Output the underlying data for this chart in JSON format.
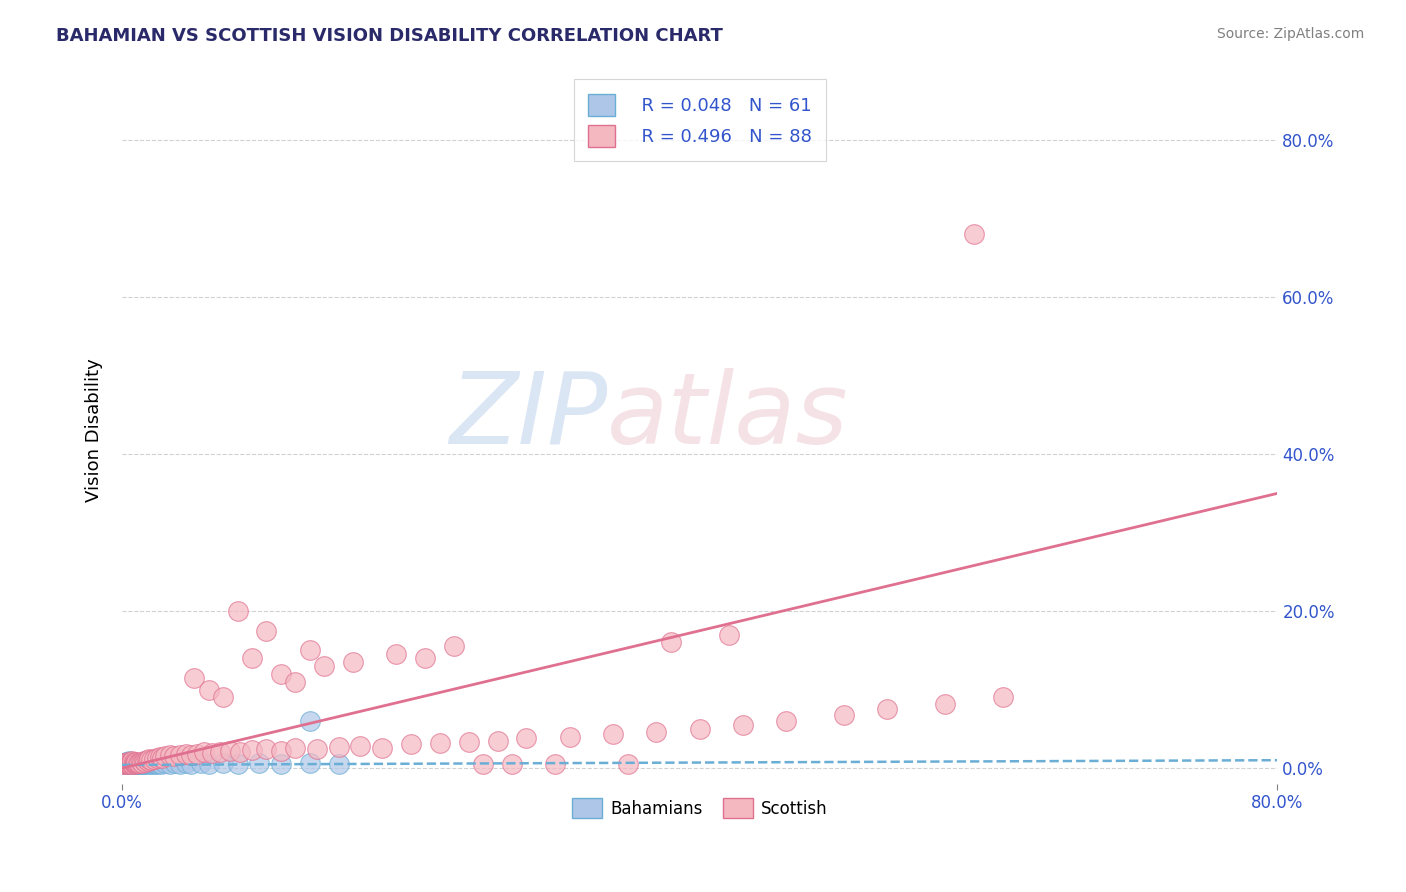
{
  "title": "BAHAMIAN VS SCOTTISH VISION DISABILITY CORRELATION CHART",
  "source": "Source: ZipAtlas.com",
  "ylabel": "Vision Disability",
  "y_tick_labels": [
    "0.0%",
    "20.0%",
    "40.0%",
    "60.0%",
    "80.0%"
  ],
  "y_tick_values": [
    0.0,
    0.2,
    0.4,
    0.6,
    0.8
  ],
  "x_range": [
    0.0,
    0.8
  ],
  "y_range": [
    -0.02,
    0.88
  ],
  "bahamian_color": "#aec6e8",
  "scottish_color": "#f4b8c1",
  "bahamian_edge": "#6aaed6",
  "scottish_edge": "#e07090",
  "title_color": "#2a2a6a",
  "axis_label_color": "#3355cc",
  "grid_color": "#cccccc",
  "legend_r_bahamian": "R = 0.048",
  "legend_n_bahamian": "N = 61",
  "legend_r_scottish": "R = 0.496",
  "legend_n_scottish": "N = 88",
  "bahamian_x": [
    0.001,
    0.002,
    0.002,
    0.003,
    0.003,
    0.003,
    0.004,
    0.004,
    0.004,
    0.005,
    0.005,
    0.005,
    0.006,
    0.006,
    0.006,
    0.007,
    0.007,
    0.007,
    0.008,
    0.008,
    0.008,
    0.009,
    0.009,
    0.01,
    0.01,
    0.011,
    0.011,
    0.012,
    0.012,
    0.013,
    0.013,
    0.014,
    0.014,
    0.015,
    0.015,
    0.016,
    0.017,
    0.018,
    0.019,
    0.02,
    0.021,
    0.022,
    0.023,
    0.024,
    0.025,
    0.027,
    0.03,
    0.033,
    0.037,
    0.04,
    0.044,
    0.048,
    0.055,
    0.06,
    0.07,
    0.08,
    0.095,
    0.11,
    0.13,
    0.15,
    0.13
  ],
  "bahamian_y": [
    0.005,
    0.006,
    0.007,
    0.005,
    0.008,
    0.007,
    0.006,
    0.008,
    0.005,
    0.007,
    0.006,
    0.009,
    0.005,
    0.007,
    0.006,
    0.005,
    0.008,
    0.006,
    0.005,
    0.007,
    0.006,
    0.005,
    0.007,
    0.005,
    0.006,
    0.005,
    0.007,
    0.005,
    0.006,
    0.005,
    0.007,
    0.005,
    0.006,
    0.005,
    0.007,
    0.005,
    0.006,
    0.005,
    0.007,
    0.005,
    0.006,
    0.005,
    0.007,
    0.005,
    0.006,
    0.005,
    0.006,
    0.005,
    0.006,
    0.005,
    0.006,
    0.005,
    0.006,
    0.005,
    0.006,
    0.005,
    0.006,
    0.005,
    0.006,
    0.005,
    0.06
  ],
  "scottish_x": [
    0.001,
    0.002,
    0.003,
    0.003,
    0.004,
    0.004,
    0.005,
    0.005,
    0.006,
    0.006,
    0.007,
    0.007,
    0.008,
    0.008,
    0.009,
    0.009,
    0.01,
    0.01,
    0.011,
    0.012,
    0.013,
    0.014,
    0.015,
    0.016,
    0.017,
    0.018,
    0.019,
    0.02,
    0.022,
    0.024,
    0.026,
    0.028,
    0.03,
    0.033,
    0.036,
    0.04,
    0.044,
    0.048,
    0.052,
    0.057,
    0.062,
    0.068,
    0.075,
    0.082,
    0.09,
    0.1,
    0.11,
    0.12,
    0.135,
    0.15,
    0.165,
    0.18,
    0.2,
    0.22,
    0.24,
    0.26,
    0.28,
    0.31,
    0.34,
    0.37,
    0.4,
    0.43,
    0.46,
    0.5,
    0.53,
    0.57,
    0.61,
    0.38,
    0.42,
    0.25,
    0.27,
    0.3,
    0.35,
    0.08,
    0.1,
    0.13,
    0.05,
    0.06,
    0.07,
    0.09,
    0.11,
    0.12,
    0.14,
    0.16,
    0.19,
    0.21,
    0.23,
    0.59
  ],
  "scottish_y": [
    0.005,
    0.006,
    0.005,
    0.007,
    0.006,
    0.008,
    0.005,
    0.007,
    0.006,
    0.008,
    0.005,
    0.009,
    0.006,
    0.008,
    0.005,
    0.007,
    0.006,
    0.008,
    0.007,
    0.006,
    0.008,
    0.007,
    0.009,
    0.008,
    0.01,
    0.009,
    0.011,
    0.01,
    0.012,
    0.013,
    0.014,
    0.013,
    0.015,
    0.016,
    0.015,
    0.017,
    0.018,
    0.016,
    0.018,
    0.02,
    0.019,
    0.021,
    0.022,
    0.02,
    0.023,
    0.024,
    0.022,
    0.025,
    0.024,
    0.027,
    0.028,
    0.026,
    0.03,
    0.032,
    0.033,
    0.035,
    0.038,
    0.04,
    0.043,
    0.046,
    0.05,
    0.055,
    0.06,
    0.068,
    0.075,
    0.082,
    0.09,
    0.16,
    0.17,
    0.005,
    0.005,
    0.005,
    0.005,
    0.2,
    0.175,
    0.15,
    0.115,
    0.1,
    0.09,
    0.14,
    0.12,
    0.11,
    0.13,
    0.135,
    0.145,
    0.14,
    0.155,
    0.68
  ]
}
